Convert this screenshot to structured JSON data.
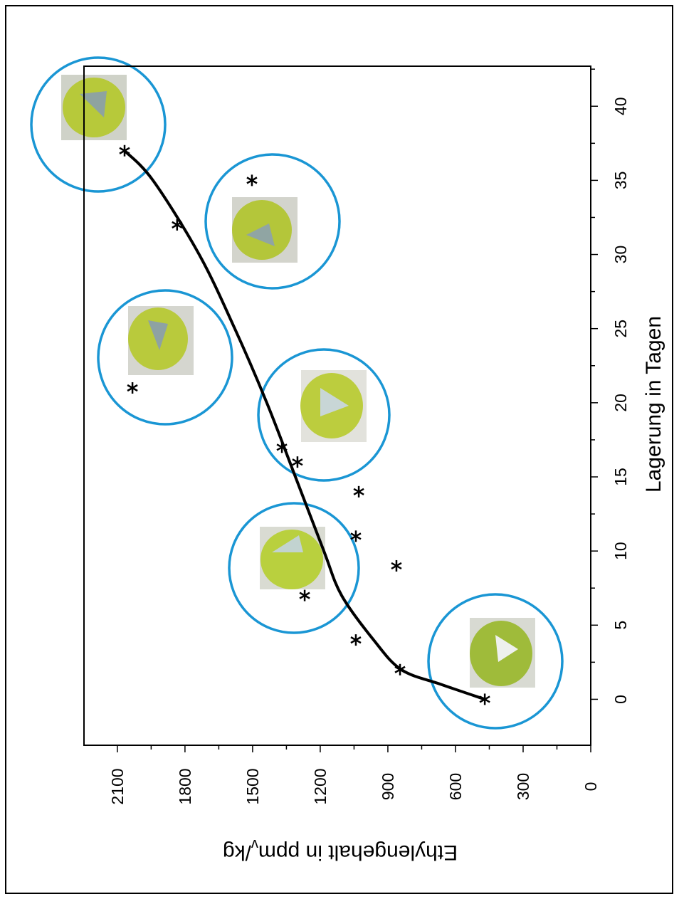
{
  "chart_data": {
    "type": "scatter",
    "x_label": "Lagerung in Tagen",
    "y_label_parts": [
      "Ethylengehalt in ppm",
      "v",
      "/kg"
    ],
    "x": [
      0,
      2,
      4,
      7,
      9,
      11,
      14,
      16,
      17,
      21,
      32,
      35,
      37
    ],
    "values": [
      470,
      846,
      1042,
      1269,
      862,
      1042,
      1029,
      1301,
      1370,
      2033,
      1835,
      1503,
      2068
    ],
    "color": "#000000",
    "curve": {
      "x": [
        0,
        1,
        2,
        4,
        7,
        10,
        15,
        20,
        25,
        30,
        35,
        37
      ],
      "values": [
        470,
        663,
        840,
        963,
        1105,
        1184,
        1310,
        1437,
        1579,
        1737,
        1942,
        2068
      ],
      "color": "#000000"
    },
    "xlim": [
      -3.1,
      42.7
    ],
    "xticks": [
      0,
      5,
      10,
      15,
      20,
      25,
      30,
      35,
      40
    ],
    "ylim": [
      0,
      2248
    ],
    "yticks": [
      0,
      300,
      600,
      900,
      1200,
      1500,
      1800,
      2100
    ],
    "rotated": true,
    "grid": false
  }
}
